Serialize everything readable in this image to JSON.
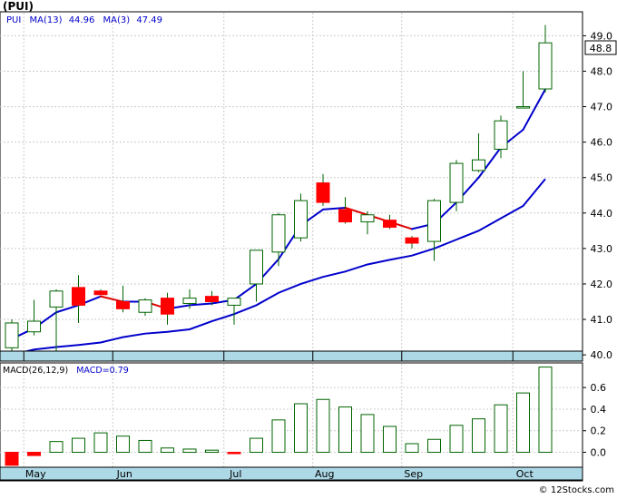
{
  "header": {
    "title": "(PUI)",
    "legend_symbol": "PUI",
    "ma13_label": "MA(13)",
    "ma13_value": "44.96",
    "ma3_label": "MA(3)",
    "ma3_value": "47.49"
  },
  "price_tag": "48.8",
  "macd_header": {
    "label": "MACD(26,12,9)",
    "value_label": "MACD=0.79"
  },
  "footer": {
    "credit": "© 12Stocks.com"
  },
  "colors": {
    "up_candle": "#006400",
    "down_candle": "#ff0000",
    "ma3_up": "#0000cc",
    "ma3_down": "#dd0000",
    "ma13": "#0000cc",
    "month_bar": "#add8e6",
    "grid": "#cccccc",
    "legend_text": "#0000cc"
  },
  "chart_data": [
    {
      "type": "candlestick",
      "title": "(PUI)",
      "ylim": [
        39.85,
        49.65
      ],
      "yticks": [
        "40.0",
        "41.0",
        "42.0",
        "43.0",
        "44.0",
        "45.0",
        "46.0",
        "47.0",
        "48.0",
        "49.0"
      ],
      "months": [
        "May",
        "Jun",
        "Jul",
        "Aug",
        "Sep",
        "Oct"
      ],
      "month_index": [
        1,
        5,
        10,
        14,
        18,
        23
      ],
      "grid": true,
      "candles": [
        {
          "o": 40.2,
          "h": 41.0,
          "l": 40.0,
          "c": 40.9
        },
        {
          "o": 40.65,
          "h": 41.55,
          "l": 40.55,
          "c": 40.95
        },
        {
          "o": 41.35,
          "h": 41.85,
          "l": 39.85,
          "c": 41.8
        },
        {
          "o": 41.9,
          "h": 42.25,
          "l": 40.9,
          "c": 41.4
        },
        {
          "o": 41.8,
          "h": 41.85,
          "l": 41.7,
          "c": 41.7
        },
        {
          "o": 41.5,
          "h": 41.95,
          "l": 41.2,
          "c": 41.3
        },
        {
          "o": 41.2,
          "h": 41.6,
          "l": 41.1,
          "c": 41.55
        },
        {
          "o": 41.6,
          "h": 41.75,
          "l": 40.85,
          "c": 41.15
        },
        {
          "o": 41.45,
          "h": 41.85,
          "l": 41.3,
          "c": 41.6
        },
        {
          "o": 41.65,
          "h": 41.8,
          "l": 41.4,
          "c": 41.5
        },
        {
          "o": 41.4,
          "h": 41.6,
          "l": 40.85,
          "c": 41.6
        },
        {
          "o": 42.0,
          "h": 42.95,
          "l": 41.5,
          "c": 42.95
        },
        {
          "o": 42.9,
          "h": 44.0,
          "l": 42.5,
          "c": 43.95
        },
        {
          "o": 43.3,
          "h": 44.55,
          "l": 43.2,
          "c": 44.35
        },
        {
          "o": 44.85,
          "h": 45.1,
          "l": 44.2,
          "c": 44.3
        },
        {
          "o": 44.1,
          "h": 44.45,
          "l": 43.7,
          "c": 43.75
        },
        {
          "o": 43.75,
          "h": 44.05,
          "l": 43.4,
          "c": 43.95
        },
        {
          "o": 43.8,
          "h": 43.95,
          "l": 43.55,
          "c": 43.6
        },
        {
          "o": 43.3,
          "h": 43.35,
          "l": 43.0,
          "c": 43.15
        },
        {
          "o": 43.2,
          "h": 44.4,
          "l": 42.65,
          "c": 44.35
        },
        {
          "o": 44.3,
          "h": 45.5,
          "l": 44.05,
          "c": 45.4
        },
        {
          "o": 45.2,
          "h": 46.25,
          "l": 45.15,
          "c": 45.5
        },
        {
          "o": 45.8,
          "h": 46.75,
          "l": 45.55,
          "c": 46.6
        },
        {
          "o": 47.0,
          "h": 48.0,
          "l": 47.0,
          "c": 47.0
        },
        {
          "o": 47.5,
          "h": 49.3,
          "l": 47.4,
          "c": 48.8
        }
      ],
      "series": [
        {
          "name": "MA(3)",
          "values": [
            40.45,
            40.75,
            41.2,
            41.4,
            41.65,
            41.5,
            41.5,
            41.3,
            41.4,
            41.45,
            41.55,
            42.0,
            42.7,
            43.65,
            44.1,
            44.15,
            43.95,
            43.75,
            43.55,
            43.7,
            44.3,
            45.0,
            45.85,
            46.35,
            47.49
          ]
        },
        {
          "name": "MA(13)",
          "values": [
            40.0,
            40.15,
            40.22,
            40.28,
            40.35,
            40.5,
            40.6,
            40.65,
            40.72,
            40.95,
            41.15,
            41.4,
            41.75,
            42.0,
            42.2,
            42.35,
            42.55,
            42.68,
            42.8,
            43.0,
            43.25,
            43.5,
            43.85,
            44.2,
            44.96
          ]
        }
      ]
    },
    {
      "type": "bar",
      "title": "MACD(26,12,9)",
      "ylim": [
        -0.13,
        0.82
      ],
      "yticks": [
        "0.0",
        "0.2",
        "0.4",
        "0.6"
      ],
      "grid": true,
      "values": [
        -0.12,
        -0.03,
        0.1,
        0.13,
        0.18,
        0.15,
        0.11,
        0.04,
        0.03,
        0.02,
        -0.01,
        0.13,
        0.3,
        0.45,
        0.49,
        0.42,
        0.35,
        0.24,
        0.08,
        0.12,
        0.25,
        0.31,
        0.44,
        0.55,
        0.79
      ]
    }
  ]
}
